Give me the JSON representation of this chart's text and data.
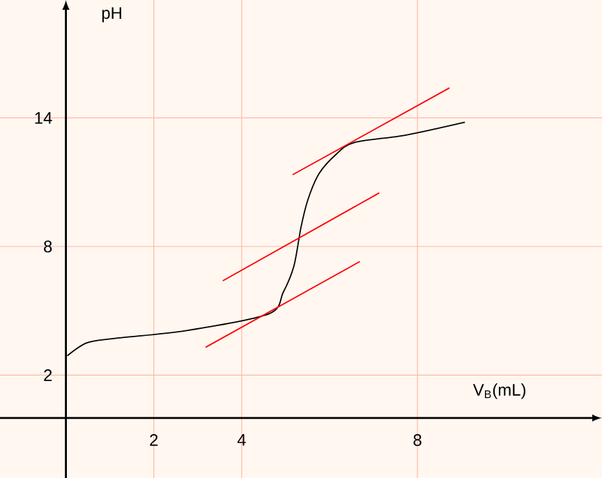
{
  "chart_data": {
    "type": "line",
    "xlabel": "V$_{B}$(mL)",
    "ylabel": "pH",
    "xlim": [
      -1.5,
      12.2
    ],
    "ylim": [
      -2.8,
      19.5
    ],
    "xticks": [
      2,
      4,
      8
    ],
    "yticks": [
      2,
      8,
      14
    ],
    "grid": true,
    "marker": "none",
    "line_style": "solid",
    "series": [
      {
        "color": "#000000",
        "x": [
          0.03,
          0.47,
          1.05,
          2.75,
          4.62,
          4.94,
          5.19,
          5.35,
          5.51,
          5.76,
          6.15,
          6.56,
          7.74,
          9.08
        ],
        "values": [
          2.9,
          3.5,
          3.7,
          4.08,
          4.86,
          5.84,
          7.1,
          8.9,
          10.2,
          11.4,
          12.3,
          12.85,
          13.2,
          13.8
        ]
      },
      {
        "color": "#ff0000",
        "x": [
          5.16,
          8.73
        ],
        "values": [
          11.35,
          15.4
        ]
      },
      {
        "color": "#ff0000",
        "x": [
          3.57,
          7.13
        ],
        "values": [
          6.4,
          10.5
        ]
      },
      {
        "color": "#ff0000",
        "x": [
          3.18,
          6.69
        ],
        "values": [
          3.3,
          7.3
        ]
      }
    ]
  }
}
